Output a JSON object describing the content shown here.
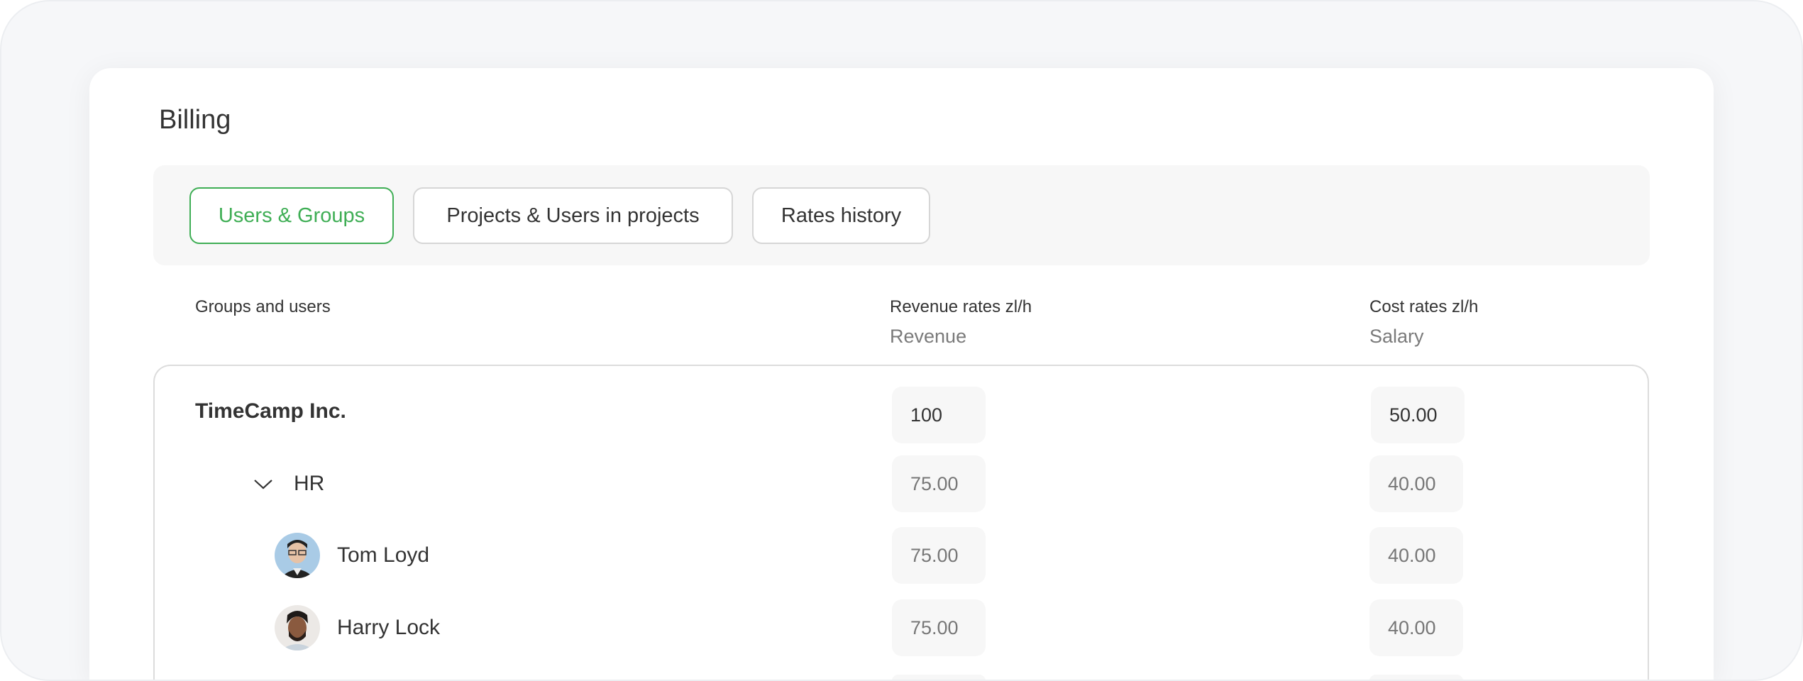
{
  "page": {
    "title": "Billing"
  },
  "tabs": [
    {
      "label": "Users & Groups",
      "active": true
    },
    {
      "label": "Projects & Users in projects",
      "active": false
    },
    {
      "label": "Rates history",
      "active": false
    }
  ],
  "columns": {
    "groups": "Groups and users",
    "revenue": "Revenue rates zl/h",
    "revenue_sub": "Revenue",
    "cost": "Cost rates zl/h",
    "cost_sub": "Salary"
  },
  "rows": [
    {
      "name": "TimeCamp Inc.",
      "revenue": "100",
      "cost": "50.00"
    },
    {
      "name": "HR",
      "revenue": "75.00",
      "cost": "40.00",
      "icon": "chevron-down-icon"
    },
    {
      "name": "Tom Loyd",
      "revenue": "75.00",
      "cost": "40.00"
    },
    {
      "name": "Harry Lock",
      "revenue": "75.00",
      "cost": "40.00"
    }
  ],
  "colors": {
    "accent": "#3fae55"
  }
}
